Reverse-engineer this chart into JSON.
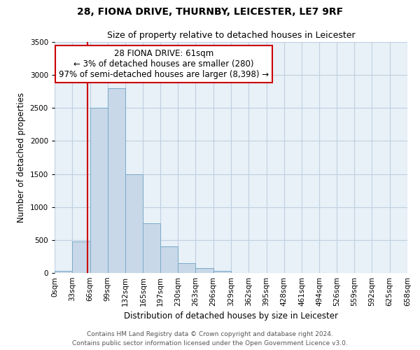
{
  "title": "28, FIONA DRIVE, THURNBY, LEICESTER, LE7 9RF",
  "subtitle": "Size of property relative to detached houses in Leicester",
  "xlabel": "Distribution of detached houses by size in Leicester",
  "ylabel": "Number of detached properties",
  "bar_color": "#c8d8e8",
  "bar_edge_color": "#7aaac8",
  "background_color": "#ffffff",
  "plot_bg_color": "#e8f0f8",
  "grid_color": "#c0d0e0",
  "vline_x": 61,
  "vline_color": "#cc0000",
  "ylim": [
    0,
    3500
  ],
  "bin_edges": [
    0,
    33,
    66,
    99,
    132,
    165,
    197,
    230,
    263,
    296,
    329,
    362,
    395,
    428,
    461,
    494,
    526,
    559,
    592,
    625,
    658
  ],
  "bin_labels": [
    "0sqm",
    "33sqm",
    "66sqm",
    "99sqm",
    "132sqm",
    "165sqm",
    "197sqm",
    "230sqm",
    "263sqm",
    "296sqm",
    "329sqm",
    "362sqm",
    "395sqm",
    "428sqm",
    "461sqm",
    "494sqm",
    "526sqm",
    "559sqm",
    "592sqm",
    "625sqm",
    "658sqm"
  ],
  "bar_heights": [
    30,
    480,
    2500,
    2800,
    1500,
    750,
    400,
    150,
    70,
    30,
    0,
    0,
    0,
    0,
    0,
    0,
    0,
    0,
    0,
    0
  ],
  "annotation_title": "28 FIONA DRIVE: 61sqm",
  "annotation_line1": "← 3% of detached houses are smaller (280)",
  "annotation_line2": "97% of semi-detached houses are larger (8,398) →",
  "annotation_box_color": "#ffffff",
  "annotation_box_edge_color": "#cc0000",
  "footer_line1": "Contains HM Land Registry data © Crown copyright and database right 2024.",
  "footer_line2": "Contains public sector information licensed under the Open Government Licence v3.0.",
  "title_fontsize": 10,
  "subtitle_fontsize": 9,
  "axis_label_fontsize": 8.5,
  "tick_fontsize": 7.5,
  "annotation_fontsize": 8.5,
  "footer_fontsize": 6.5
}
